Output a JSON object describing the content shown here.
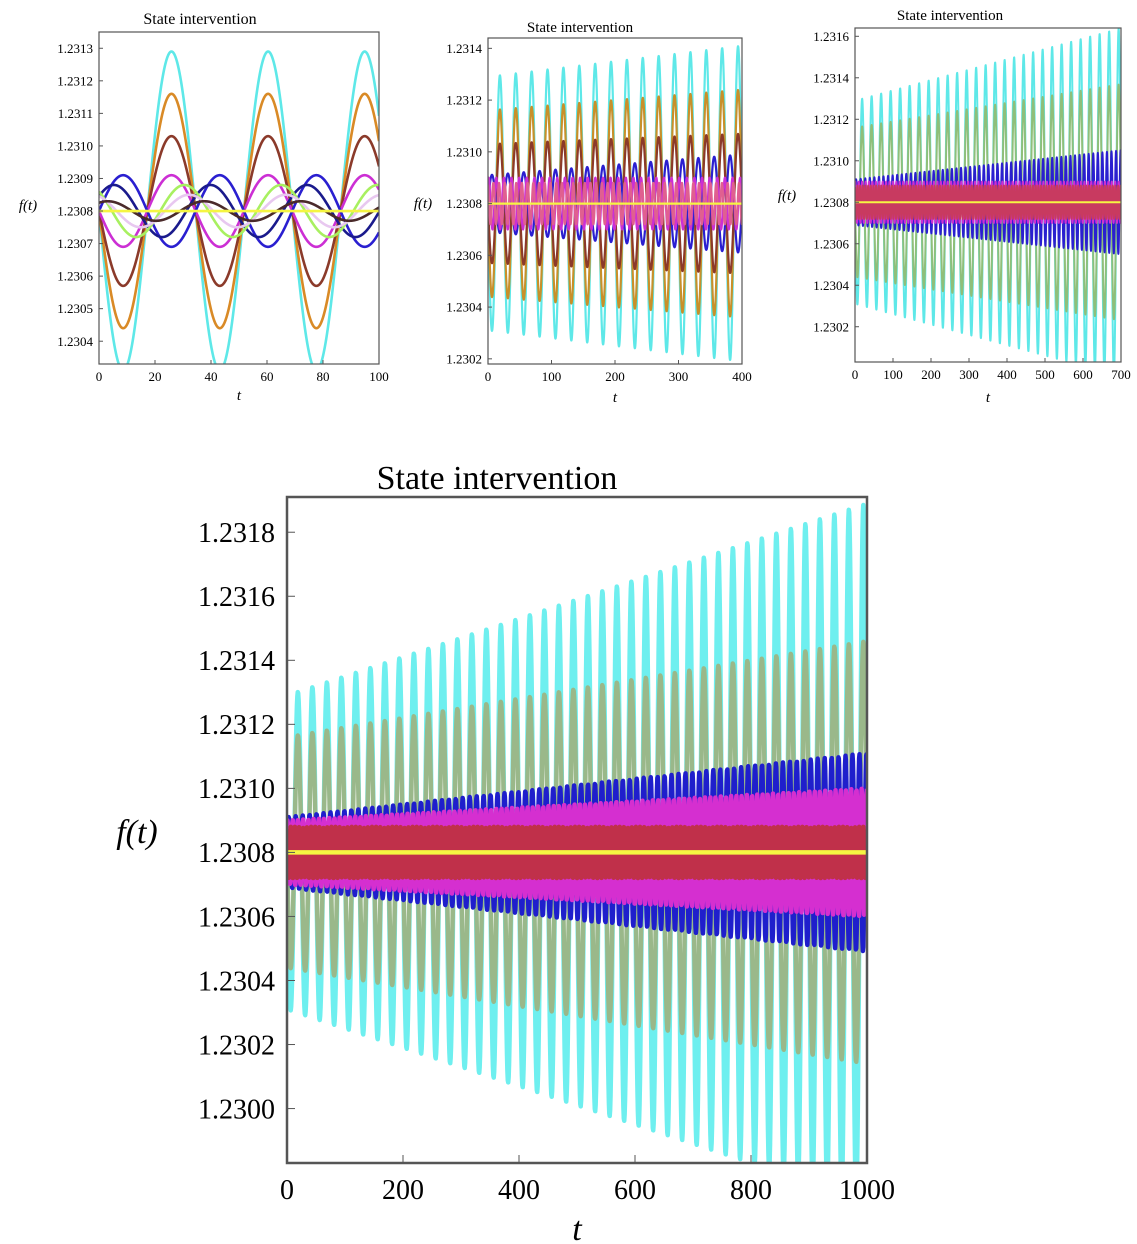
{
  "chart_data": [
    {
      "type": "line",
      "title": "State intervention",
      "xlabel": "t",
      "ylabel": "f(t)",
      "xlim": [
        0,
        100
      ],
      "ylim": [
        1.23033,
        1.23135
      ],
      "xticks": [
        "0",
        "20",
        "40",
        "60",
        "80",
        "100"
      ],
      "yticks": [
        "1.2304",
        "1.2305",
        "1.2306",
        "1.2307",
        "1.2308",
        "1.2309",
        "1.2310",
        "1.2311",
        "1.2312",
        "1.2313"
      ],
      "baseline": 1.2308,
      "series": [
        {
          "color": "#5ee8e8",
          "amplitude": 0.00049,
          "period": 34.5,
          "phase": 3.14,
          "growth": 0.0
        },
        {
          "color": "#d98a26",
          "amplitude": 0.00036,
          "period": 34.5,
          "phase": 3.14,
          "growth": 0.0
        },
        {
          "color": "#8b3a2a",
          "amplitude": 0.00023,
          "period": 34.5,
          "phase": 3.14,
          "growth": 0.0
        },
        {
          "color": "#cc2fd4",
          "amplitude": 0.00011,
          "period": 34.5,
          "phase": 3.14,
          "growth": 0.0
        },
        {
          "color": "#2a1fd0",
          "amplitude": 0.00011,
          "period": 34.5,
          "phase": 0.0,
          "growth": 0.0
        },
        {
          "color": "#1a1a8c",
          "amplitude": 8e-05,
          "period": 34.5,
          "phase": 0.6,
          "growth": 0.0
        },
        {
          "color": "#a8f060",
          "amplitude": 8e-05,
          "period": 34.5,
          "phase": 2.3,
          "growth": 0.0
        },
        {
          "color": "#e8c8f0",
          "amplitude": 5e-05,
          "period": 34.5,
          "phase": 2.0,
          "growth": 0.0
        },
        {
          "color": "#4a2a2a",
          "amplitude": 3e-05,
          "period": 34.5,
          "phase": 1.0,
          "growth": 0.0
        },
        {
          "color": "#f5f542",
          "amplitude": 0.0,
          "period": 34.5,
          "phase": 0.0,
          "growth": 0.0
        }
      ]
    },
    {
      "type": "line",
      "title": "State intervention",
      "xlabel": "t",
      "ylabel": "f(t)",
      "xlim": [
        0,
        400
      ],
      "ylim": [
        1.23018,
        1.23144
      ],
      "xticks": [
        "0",
        "100",
        "200",
        "300",
        "400"
      ],
      "yticks": [
        "1.2302",
        "1.2304",
        "1.2306",
        "1.2308",
        "1.2310",
        "1.2312",
        "1.2314"
      ],
      "baseline": 1.2308,
      "series": [
        {
          "color": "#5ee8e8",
          "amplitude": 0.00049,
          "period": 25.0,
          "phase": 3.14,
          "growth": 3e-07
        },
        {
          "color": "#c8902a",
          "amplitude": 0.00036,
          "period": 25.0,
          "phase": 3.14,
          "growth": 2e-07
        },
        {
          "color": "#8b3a2a",
          "amplitude": 0.00023,
          "period": 25.0,
          "phase": 3.14,
          "growth": 1e-07
        },
        {
          "color": "#2a1fd0",
          "amplitude": 0.00011,
          "period": 25.0,
          "phase": 0.0,
          "growth": 2e-07
        },
        {
          "color": "#cc2fd4",
          "amplitude": 0.0001,
          "period": 12.0,
          "phase": 1.0,
          "growth": 0.0
        },
        {
          "color": "#e06090",
          "amplitude": 8e-05,
          "period": 9.0,
          "phase": 2.0,
          "growth": 0.0
        },
        {
          "color": "#f5f542",
          "amplitude": 0.0,
          "period": 25.0,
          "phase": 0.0,
          "growth": 0.0
        }
      ]
    },
    {
      "type": "line",
      "title": "State intervention",
      "xlabel": "t",
      "ylabel": "f(t)",
      "xlim": [
        0,
        700
      ],
      "ylim": [
        1.23003,
        1.23164
      ],
      "xticks": [
        "0",
        "100",
        "200",
        "300",
        "400",
        "500",
        "600",
        "700"
      ],
      "yticks": [
        "1.2302",
        "1.2304",
        "1.2306",
        "1.2308",
        "1.2310",
        "1.2312",
        "1.2314",
        "1.2316"
      ],
      "baseline": 1.2308,
      "series": [
        {
          "color": "#5ee8e8",
          "amplitude": 0.00049,
          "period": 25.0,
          "phase": 3.14,
          "growth": 5e-07
        },
        {
          "color": "#8fbf7a",
          "amplitude": 0.00036,
          "period": 25.0,
          "phase": 3.14,
          "growth": 3e-07
        },
        {
          "color": "#2a1fd0",
          "amplitude": 0.00011,
          "period": 12.0,
          "phase": 0.0,
          "growth": 2e-07
        },
        {
          "color": "#cc2fd4",
          "amplitude": 0.0001,
          "period": 9.0,
          "phase": 1.0,
          "growth": 0.0
        },
        {
          "color": "#c83a60",
          "amplitude": 8e-05,
          "period": 7.0,
          "phase": 2.0,
          "growth": 0.0
        },
        {
          "color": "#f5f542",
          "amplitude": 0.0,
          "period": 25.0,
          "phase": 0.0,
          "growth": 0.0
        }
      ]
    },
    {
      "type": "line",
      "title": "State intervention",
      "xlabel": "t",
      "ylabel": "f(t)",
      "xlim": [
        0,
        1000
      ],
      "ylim": [
        1.22983,
        1.23191
      ],
      "xticks": [
        "0",
        "200",
        "400",
        "600",
        "800",
        "1000"
      ],
      "yticks": [
        "1.2300",
        "1.2302",
        "1.2304",
        "1.2306",
        "1.2308",
        "1.2310",
        "1.2312",
        "1.2314",
        "1.2316",
        "1.2318"
      ],
      "baseline": 1.2308,
      "series": [
        {
          "color": "#6eefef",
          "amplitude": 0.00049,
          "period": 25.0,
          "phase": 3.14,
          "growth": 6e-07
        },
        {
          "color": "#9ab88a",
          "amplitude": 0.00036,
          "period": 25.0,
          "phase": 3.14,
          "growth": 3e-07
        },
        {
          "color": "#1f1fcc",
          "amplitude": 0.00011,
          "period": 12.0,
          "phase": 0.0,
          "growth": 2e-07
        },
        {
          "color": "#d52fd0",
          "amplitude": 0.0001,
          "period": 9.0,
          "phase": 1.0,
          "growth": 1e-07
        },
        {
          "color": "#c0304a",
          "amplitude": 8e-05,
          "period": 7.0,
          "phase": 2.0,
          "growth": 0.0
        },
        {
          "color": "#f5f542",
          "amplitude": 0.0,
          "period": 25.0,
          "phase": 0.0,
          "growth": 0.0
        }
      ]
    }
  ]
}
